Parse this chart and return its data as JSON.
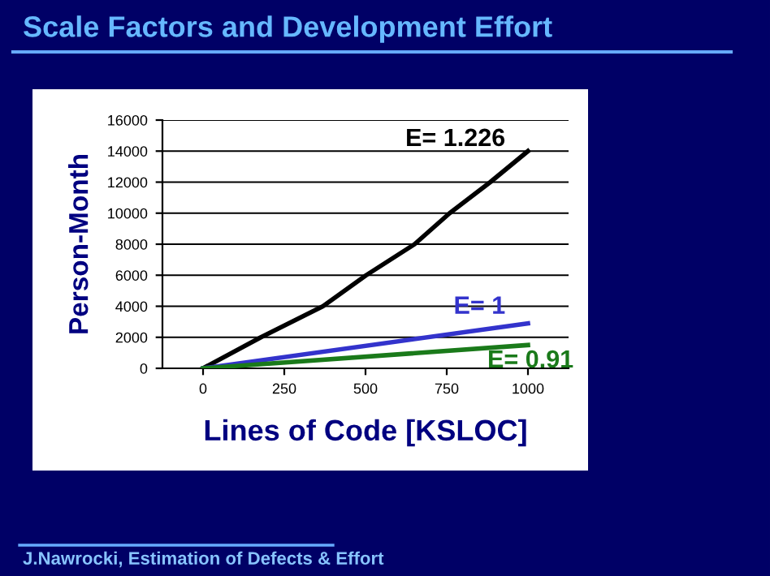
{
  "chart_data": {
    "type": "line",
    "title": "Scale Factors and Development Effort",
    "xlabel": "Lines of Code [KSLOC]",
    "ylabel": "Person-Month",
    "annotations": [
      "J.Nawrocki, Estimation of Defects & Effort"
    ],
    "series": [
      {
        "name": "E= 1.226",
        "color": "#000000",
        "x": [
          0,
          178,
          369,
          502,
          651,
          759,
          884,
          1000
        ],
        "values": [
          0,
          2000,
          4000,
          6000,
          8000,
          10000,
          12000,
          14000
        ]
      },
      {
        "name": "E= 1",
        "color": "#3333cc",
        "x": [
          0,
          1000
        ],
        "values": [
          0,
          2900
        ]
      },
      {
        "name": "E= 0.91",
        "color": "#1a7a1a",
        "x": [
          0,
          1000
        ],
        "values": [
          0,
          1500
        ]
      }
    ],
    "xlim": [
      -125,
      1125
    ],
    "xticks": [
      0,
      250,
      500,
      750,
      1000
    ],
    "ylim": [
      0,
      16000
    ],
    "yticks": [
      0,
      2000,
      4000,
      6000,
      8000,
      10000,
      12000,
      14000,
      16000
    ],
    "grid": "y",
    "line_style": "solid",
    "marker": "none"
  }
}
